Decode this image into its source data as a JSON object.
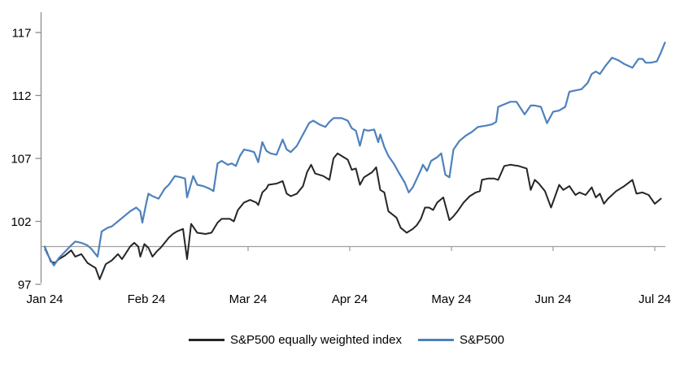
{
  "chart_data": {
    "type": "line",
    "title": "",
    "x_axis": {
      "unit": "month index since Jan 1 2024 (0 = Jan 1, 6 = Jul 1)",
      "tick_labels": [
        "Jan 24",
        "Feb 24",
        "Mar 24",
        "Apr 24",
        "May 24",
        "Jun 24",
        "Jul 24"
      ],
      "range": [
        0,
        6.1
      ]
    },
    "y_axis": {
      "tick_labels": [
        "97",
        "102",
        "107",
        "112",
        "117"
      ],
      "ticks": [
        97,
        102,
        107,
        112,
        117
      ],
      "range": [
        97,
        118.5
      ],
      "baseline_value": 100
    },
    "grid": "none; single gray horizontal axis line drawn at value 100 with month tick marks",
    "legend_position": "bottom-center",
    "axis_color": "#8C8C8C",
    "baseline_color": "#A0A0A0",
    "text_color": "#000000",
    "series": [
      {
        "name": "S&P500 equally weighted index",
        "color": "#262626",
        "points": [
          [
            0.0,
            100.0
          ],
          [
            0.02,
            99.6
          ],
          [
            0.06,
            98.8
          ],
          [
            0.1,
            98.7
          ],
          [
            0.14,
            99.0
          ],
          [
            0.2,
            99.3
          ],
          [
            0.26,
            99.7
          ],
          [
            0.3,
            99.2
          ],
          [
            0.36,
            99.4
          ],
          [
            0.42,
            98.7
          ],
          [
            0.46,
            98.5
          ],
          [
            0.5,
            98.3
          ],
          [
            0.54,
            97.4
          ],
          [
            0.6,
            98.6
          ],
          [
            0.66,
            98.9
          ],
          [
            0.72,
            99.4
          ],
          [
            0.76,
            99.0
          ],
          [
            0.8,
            99.5
          ],
          [
            0.84,
            100.0
          ],
          [
            0.88,
            100.3
          ],
          [
            0.92,
            100.0
          ],
          [
            0.94,
            99.2
          ],
          [
            0.98,
            100.2
          ],
          [
            1.02,
            99.9
          ],
          [
            1.06,
            99.2
          ],
          [
            1.1,
            99.6
          ],
          [
            1.14,
            99.9
          ],
          [
            1.18,
            100.3
          ],
          [
            1.22,
            100.7
          ],
          [
            1.26,
            101.0
          ],
          [
            1.3,
            101.2
          ],
          [
            1.36,
            101.4
          ],
          [
            1.4,
            99.0
          ],
          [
            1.44,
            101.8
          ],
          [
            1.5,
            101.1
          ],
          [
            1.58,
            101.0
          ],
          [
            1.64,
            101.1
          ],
          [
            1.7,
            101.9
          ],
          [
            1.74,
            102.2
          ],
          [
            1.82,
            102.2
          ],
          [
            1.86,
            102.0
          ],
          [
            1.9,
            102.9
          ],
          [
            1.96,
            103.5
          ],
          [
            2.02,
            103.7
          ],
          [
            2.08,
            103.5
          ],
          [
            2.1,
            103.3
          ],
          [
            2.14,
            104.3
          ],
          [
            2.18,
            104.6
          ],
          [
            2.2,
            104.9
          ],
          [
            2.28,
            105.0
          ],
          [
            2.34,
            105.2
          ],
          [
            2.38,
            104.2
          ],
          [
            2.42,
            104.0
          ],
          [
            2.48,
            104.2
          ],
          [
            2.54,
            104.8
          ],
          [
            2.58,
            105.9
          ],
          [
            2.62,
            106.5
          ],
          [
            2.66,
            105.8
          ],
          [
            2.74,
            105.6
          ],
          [
            2.8,
            105.3
          ],
          [
            2.84,
            107.0
          ],
          [
            2.88,
            107.4
          ],
          [
            2.94,
            107.1
          ],
          [
            2.98,
            106.9
          ],
          [
            3.02,
            106.1
          ],
          [
            3.06,
            106.2
          ],
          [
            3.1,
            104.9
          ],
          [
            3.14,
            105.5
          ],
          [
            3.18,
            105.7
          ],
          [
            3.22,
            105.9
          ],
          [
            3.26,
            106.3
          ],
          [
            3.3,
            104.5
          ],
          [
            3.34,
            104.3
          ],
          [
            3.38,
            102.8
          ],
          [
            3.46,
            102.3
          ],
          [
            3.5,
            101.5
          ],
          [
            3.56,
            101.1
          ],
          [
            3.62,
            101.4
          ],
          [
            3.66,
            101.7
          ],
          [
            3.7,
            102.2
          ],
          [
            3.74,
            103.1
          ],
          [
            3.78,
            103.1
          ],
          [
            3.82,
            102.9
          ],
          [
            3.86,
            103.5
          ],
          [
            3.92,
            103.9
          ],
          [
            3.98,
            102.1
          ],
          [
            4.02,
            102.4
          ],
          [
            4.06,
            102.8
          ],
          [
            4.12,
            103.5
          ],
          [
            4.18,
            104.0
          ],
          [
            4.24,
            104.3
          ],
          [
            4.28,
            104.4
          ],
          [
            4.3,
            105.3
          ],
          [
            4.36,
            105.4
          ],
          [
            4.42,
            105.4
          ],
          [
            4.46,
            105.3
          ],
          [
            4.52,
            106.4
          ],
          [
            4.58,
            106.5
          ],
          [
            4.66,
            106.4
          ],
          [
            4.74,
            106.2
          ],
          [
            4.78,
            104.5
          ],
          [
            4.82,
            105.3
          ],
          [
            4.86,
            105.0
          ],
          [
            4.92,
            104.4
          ],
          [
            4.98,
            103.1
          ],
          [
            5.06,
            104.9
          ],
          [
            5.1,
            104.5
          ],
          [
            5.16,
            104.8
          ],
          [
            5.22,
            104.1
          ],
          [
            5.26,
            104.3
          ],
          [
            5.32,
            104.1
          ],
          [
            5.38,
            104.7
          ],
          [
            5.42,
            103.9
          ],
          [
            5.46,
            104.2
          ],
          [
            5.5,
            103.4
          ],
          [
            5.54,
            103.8
          ],
          [
            5.62,
            104.4
          ],
          [
            5.7,
            104.8
          ],
          [
            5.78,
            105.3
          ],
          [
            5.82,
            104.2
          ],
          [
            5.88,
            104.3
          ],
          [
            5.94,
            104.1
          ],
          [
            6.0,
            103.4
          ],
          [
            6.06,
            103.8
          ]
        ]
      },
      {
        "name": "S&P500",
        "color": "#4E81BD",
        "points": [
          [
            0.0,
            100.0
          ],
          [
            0.02,
            99.5
          ],
          [
            0.06,
            98.9
          ],
          [
            0.09,
            98.5
          ],
          [
            0.14,
            99.1
          ],
          [
            0.2,
            99.6
          ],
          [
            0.26,
            100.1
          ],
          [
            0.3,
            100.4
          ],
          [
            0.36,
            100.3
          ],
          [
            0.42,
            100.1
          ],
          [
            0.46,
            99.8
          ],
          [
            0.52,
            99.2
          ],
          [
            0.56,
            101.2
          ],
          [
            0.62,
            101.5
          ],
          [
            0.66,
            101.6
          ],
          [
            0.72,
            102.0
          ],
          [
            0.78,
            102.4
          ],
          [
            0.84,
            102.8
          ],
          [
            0.9,
            103.1
          ],
          [
            0.94,
            102.8
          ],
          [
            0.96,
            101.9
          ],
          [
            1.0,
            103.5
          ],
          [
            1.02,
            104.2
          ],
          [
            1.06,
            104.0
          ],
          [
            1.12,
            103.8
          ],
          [
            1.18,
            104.6
          ],
          [
            1.22,
            104.9
          ],
          [
            1.28,
            105.6
          ],
          [
            1.34,
            105.5
          ],
          [
            1.38,
            105.4
          ],
          [
            1.4,
            103.9
          ],
          [
            1.46,
            105.6
          ],
          [
            1.5,
            104.9
          ],
          [
            1.56,
            104.8
          ],
          [
            1.62,
            104.6
          ],
          [
            1.66,
            104.4
          ],
          [
            1.7,
            106.6
          ],
          [
            1.74,
            106.8
          ],
          [
            1.8,
            106.5
          ],
          [
            1.84,
            106.6
          ],
          [
            1.88,
            106.4
          ],
          [
            1.92,
            107.2
          ],
          [
            1.96,
            107.7
          ],
          [
            2.02,
            107.6
          ],
          [
            2.06,
            107.5
          ],
          [
            2.1,
            106.7
          ],
          [
            2.14,
            108.3
          ],
          [
            2.18,
            107.6
          ],
          [
            2.22,
            107.4
          ],
          [
            2.28,
            107.3
          ],
          [
            2.34,
            108.5
          ],
          [
            2.38,
            107.7
          ],
          [
            2.42,
            107.5
          ],
          [
            2.48,
            108.0
          ],
          [
            2.54,
            108.9
          ],
          [
            2.6,
            109.8
          ],
          [
            2.64,
            110.0
          ],
          [
            2.7,
            109.7
          ],
          [
            2.76,
            109.5
          ],
          [
            2.8,
            109.9
          ],
          [
            2.84,
            110.2
          ],
          [
            2.92,
            110.2
          ],
          [
            2.98,
            110.0
          ],
          [
            3.02,
            109.4
          ],
          [
            3.06,
            109.2
          ],
          [
            3.1,
            108.0
          ],
          [
            3.14,
            109.3
          ],
          [
            3.18,
            109.2
          ],
          [
            3.24,
            109.3
          ],
          [
            3.28,
            108.3
          ],
          [
            3.3,
            108.9
          ],
          [
            3.34,
            107.9
          ],
          [
            3.38,
            107.2
          ],
          [
            3.44,
            106.5
          ],
          [
            3.48,
            105.9
          ],
          [
            3.54,
            105.1
          ],
          [
            3.58,
            104.3
          ],
          [
            3.62,
            104.7
          ],
          [
            3.66,
            105.4
          ],
          [
            3.7,
            106.1
          ],
          [
            3.72,
            106.5
          ],
          [
            3.76,
            106.0
          ],
          [
            3.8,
            106.8
          ],
          [
            3.86,
            107.1
          ],
          [
            3.9,
            107.4
          ],
          [
            3.94,
            105.7
          ],
          [
            3.98,
            105.5
          ],
          [
            4.02,
            107.7
          ],
          [
            4.08,
            108.4
          ],
          [
            4.14,
            108.8
          ],
          [
            4.2,
            109.1
          ],
          [
            4.26,
            109.5
          ],
          [
            4.34,
            109.6
          ],
          [
            4.4,
            109.7
          ],
          [
            4.44,
            109.9
          ],
          [
            4.46,
            111.1
          ],
          [
            4.52,
            111.3
          ],
          [
            4.58,
            111.5
          ],
          [
            4.64,
            111.5
          ],
          [
            4.72,
            110.5
          ],
          [
            4.78,
            111.2
          ],
          [
            4.82,
            111.2
          ],
          [
            4.88,
            111.1
          ],
          [
            4.94,
            109.8
          ],
          [
            5.0,
            110.7
          ],
          [
            5.06,
            110.8
          ],
          [
            5.12,
            111.1
          ],
          [
            5.16,
            112.3
          ],
          [
            5.22,
            112.4
          ],
          [
            5.28,
            112.5
          ],
          [
            5.34,
            113.0
          ],
          [
            5.38,
            113.7
          ],
          [
            5.42,
            113.9
          ],
          [
            5.46,
            113.7
          ],
          [
            5.52,
            114.4
          ],
          [
            5.58,
            115.0
          ],
          [
            5.64,
            114.8
          ],
          [
            5.7,
            114.5
          ],
          [
            5.78,
            114.2
          ],
          [
            5.84,
            114.9
          ],
          [
            5.88,
            114.9
          ],
          [
            5.91,
            114.6
          ],
          [
            5.96,
            114.6
          ],
          [
            6.02,
            114.7
          ],
          [
            6.06,
            115.4
          ],
          [
            6.1,
            116.2
          ]
        ]
      }
    ]
  }
}
